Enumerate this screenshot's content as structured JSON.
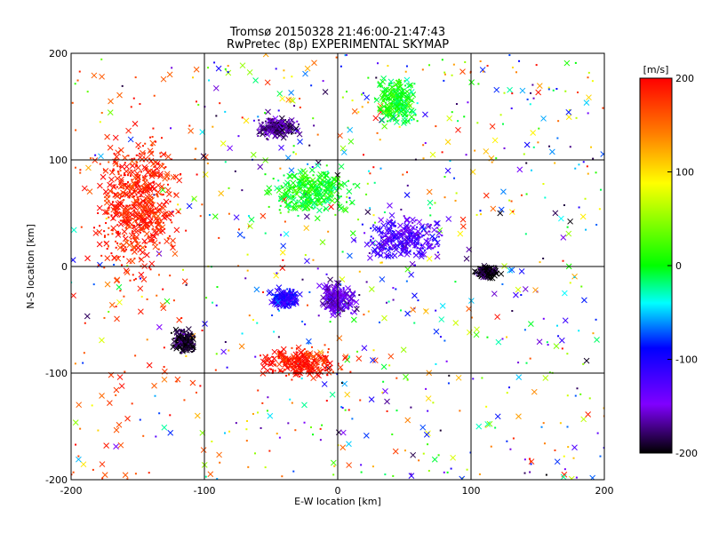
{
  "chart_data": {
    "type": "scatter",
    "title": "Tromsø 20150328 21:46:00-21:47:43",
    "subtitle": "RwPretec (8p) EXPERIMENTAL SKYMAP",
    "xlabel": "E-W location [km]",
    "ylabel": "N-S location [km]",
    "xlim": [
      -200,
      200
    ],
    "ylim": [
      -200,
      200
    ],
    "x_ticks": [
      "-200",
      "-100",
      "0",
      "100",
      "200"
    ],
    "y_ticks": [
      "-200",
      "-100",
      "0",
      "100",
      "200"
    ],
    "grid": true,
    "grid_lines": [
      -100,
      0,
      100
    ],
    "markers": [
      "x",
      "dot"
    ],
    "colorbar": {
      "label": "[m/s]",
      "range": [
        -200,
        200
      ],
      "ticks": [
        "200",
        "100",
        "0",
        "-100",
        "-200"
      ],
      "colormap": [
        "#000000",
        "#8000ff",
        "#0000ff",
        "#00ffff",
        "#00ff00",
        "#ffff00",
        "#ff8000",
        "#ff0000"
      ]
    },
    "density_regions": [
      {
        "center": [
          45,
          155
        ],
        "spread": [
          20,
          28
        ],
        "velocity": 0,
        "note": "green cluster N"
      },
      {
        "center": [
          -45,
          130
        ],
        "spread": [
          20,
          12
        ],
        "velocity": -175,
        "note": "dark cluster NW"
      },
      {
        "center": [
          -20,
          70
        ],
        "spread": [
          40,
          30
        ],
        "velocity": 0,
        "note": "cyan-green band"
      },
      {
        "center": [
          50,
          25
        ],
        "spread": [
          40,
          25
        ],
        "velocity": -130,
        "note": "mixed band E"
      },
      {
        "center": [
          -40,
          -30
        ],
        "spread": [
          14,
          12
        ],
        "velocity": -110,
        "note": "blue cluster"
      },
      {
        "center": [
          0,
          -30
        ],
        "spread": [
          18,
          20
        ],
        "velocity": -150,
        "note": "purple cluster"
      },
      {
        "center": [
          -30,
          -90
        ],
        "spread": [
          40,
          18
        ],
        "velocity": 190,
        "note": "red band S"
      },
      {
        "center": [
          112,
          -5
        ],
        "spread": [
          12,
          8
        ],
        "velocity": -200,
        "note": "black cluster E"
      },
      {
        "center": [
          -115,
          -70
        ],
        "spread": [
          12,
          15
        ],
        "velocity": -195,
        "note": "black cluster SW"
      },
      {
        "center": [
          -150,
          60
        ],
        "spread": [
          40,
          80
        ],
        "velocity": 185,
        "note": "red scatter W"
      }
    ]
  }
}
